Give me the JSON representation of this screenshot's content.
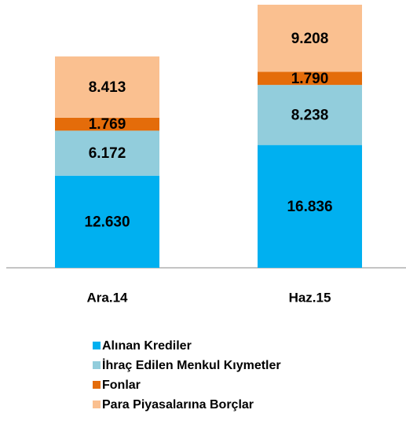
{
  "chart_data": {
    "type": "stacked_bar",
    "categories": [
      "Ara.14",
      "Haz.15"
    ],
    "series": [
      {
        "name": "Alınan Krediler",
        "color": "#00b0f0",
        "values": [
          12630,
          16836
        ],
        "value_labels": [
          "12.630",
          "16.836"
        ]
      },
      {
        "name": "İhraç Edilen Menkul Kıymetler",
        "color": "#92cddc",
        "values": [
          6172,
          8238
        ],
        "value_labels": [
          "6.172",
          "8.238"
        ]
      },
      {
        "name": "Fonlar",
        "color": "#e46c0a",
        "values": [
          1769,
          1790
        ],
        "value_labels": [
          "1.769",
          "1.790"
        ]
      },
      {
        "name": "Para Piyasalarına Borçlar",
        "color": "#fac090",
        "values": [
          8413,
          9208
        ],
        "value_labels": [
          "8.413",
          "9.208"
        ]
      }
    ],
    "legend": "bottom"
  }
}
